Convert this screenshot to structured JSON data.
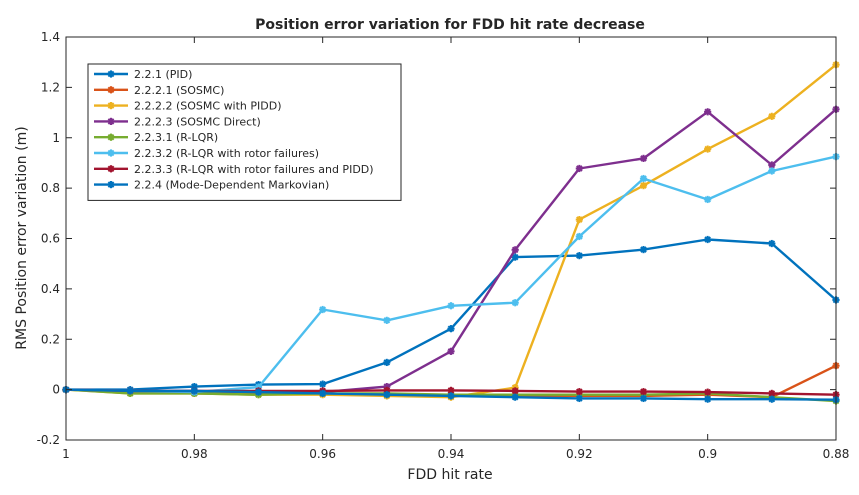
{
  "chart_data": {
    "type": "line",
    "title": "Position error variation for FDD hit rate decrease",
    "xlabel": "FDD hit rate",
    "ylabel": "RMS Position error variation (m)",
    "x_reversed": true,
    "xlim": [
      0.88,
      1
    ],
    "ylim": [
      -0.2,
      1.4
    ],
    "xticks": [
      1,
      0.98,
      0.96,
      0.94,
      0.92,
      0.9,
      0.88
    ],
    "xtick_labels": [
      "1",
      "0.98",
      "0.96",
      "0.94",
      "0.92",
      "0.9",
      "0.88"
    ],
    "yticks": [
      -0.2,
      0,
      0.2,
      0.4,
      0.6,
      0.8,
      1,
      1.2,
      1.4
    ],
    "ytick_labels": [
      "-0.2",
      "0",
      "0.2",
      "0.4",
      "0.6",
      "0.8",
      "1",
      "1.2",
      "1.4"
    ],
    "grid": false,
    "legend_position": "top-left",
    "x": [
      1,
      0.99,
      0.98,
      0.97,
      0.96,
      0.95,
      0.94,
      0.93,
      0.92,
      0.91,
      0.9,
      0.89,
      0.88
    ],
    "series": [
      {
        "name": "2.2.1 (PID)",
        "color": "#0072bd",
        "values": [
          0,
          0,
          0.012,
          0.02,
          0.022,
          0.108,
          0.242,
          0.526,
          0.532,
          0.556,
          0.596,
          0.58,
          0.356
        ]
      },
      {
        "name": "2.2.2.1 (SOSMC)",
        "color": "#d95319",
        "values": [
          0,
          -0.01,
          -0.015,
          -0.015,
          -0.015,
          -0.02,
          -0.022,
          -0.025,
          -0.025,
          -0.025,
          -0.02,
          -0.03,
          0.095
        ]
      },
      {
        "name": "2.2.2.2 (SOSMC with PIDD)",
        "color": "#edb120",
        "values": [
          0,
          -0.015,
          -0.015,
          -0.02,
          -0.02,
          -0.025,
          -0.03,
          0.008,
          0.675,
          0.81,
          0.955,
          1.085,
          1.29
        ]
      },
      {
        "name": "2.2.2.3 (SOSMC Direct)",
        "color": "#7e2f8e",
        "values": [
          0,
          -0.005,
          -0.005,
          -0.01,
          -0.01,
          0.012,
          0.152,
          0.555,
          0.878,
          0.918,
          1.103,
          0.892,
          1.113
        ]
      },
      {
        "name": "2.2.3.1 (R-LQR)",
        "color": "#77ac30",
        "values": [
          0,
          -0.015,
          -0.015,
          -0.02,
          -0.015,
          -0.015,
          -0.02,
          -0.02,
          -0.02,
          -0.02,
          -0.015,
          -0.03,
          -0.045
        ]
      },
      {
        "name": "2.2.3.2 (R-LQR with rotor failures)",
        "color": "#4dbeee",
        "values": [
          0,
          -0.005,
          -0.01,
          0.01,
          0.318,
          0.275,
          0.333,
          0.345,
          0.608,
          0.838,
          0.755,
          0.868,
          0.925
        ]
      },
      {
        "name": "2.2.3.3 (R-LQR with rotor failures and PIDD)",
        "color": "#a2142f",
        "values": [
          0,
          -0.005,
          -0.005,
          -0.005,
          -0.005,
          -0.003,
          -0.003,
          -0.005,
          -0.008,
          -0.008,
          -0.01,
          -0.015,
          -0.02
        ]
      },
      {
        "name": "2.2.4 (Mode-Dependent Markovian)",
        "color": "#0072bd",
        "values": [
          0,
          -0.005,
          -0.005,
          -0.01,
          -0.015,
          -0.02,
          -0.025,
          -0.03,
          -0.035,
          -0.035,
          -0.038,
          -0.038,
          -0.04
        ]
      }
    ]
  }
}
